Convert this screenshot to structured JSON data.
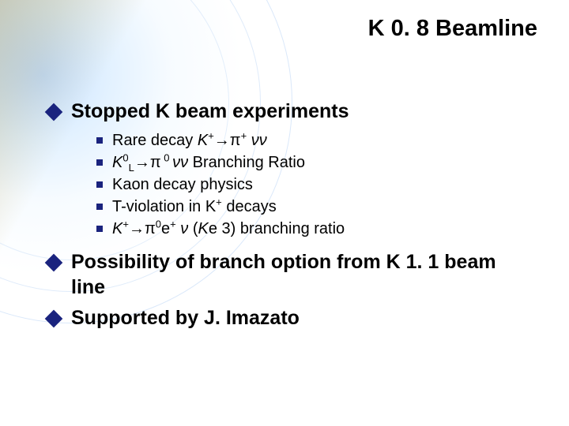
{
  "title": {
    "text": "K 0. 8 Beamline",
    "fontsize": 29,
    "color": "#000000",
    "weight": "bold"
  },
  "bullets_l1": [
    {
      "text": "Stopped K beam experiments",
      "fontsize": 25
    },
    {
      "text": " Possibility of branch option from K 1. 1 beam line",
      "fontsize": 25
    },
    {
      "text": "Supported by J. Imazato",
      "fontsize": 25
    }
  ],
  "bullets_l2": [
    {
      "prefix": "Rare decay ",
      "formula_html": "<span class='italic'>K</span><sup>+</sup>→π<sup>+</sup> <span class='italic'>νν</span>",
      "suffix": "",
      "fontsize": 20
    },
    {
      "prefix": "",
      "formula_html": "<span class='italic'>K</span><sup>0</sup><sub>L</sub>→π<sup> 0 </sup><span class='italic'>νν</span>",
      "suffix": " Branching Ratio",
      "fontsize": 20
    },
    {
      "prefix": "Kaon decay physics",
      "formula_html": "",
      "suffix": "",
      "fontsize": 20
    },
    {
      "prefix": "T-violation in K",
      "formula_html": "<sup>+</sup>",
      "suffix": " decays",
      "fontsize": 20
    },
    {
      "prefix": "",
      "formula_html": "<span class='italic'>K</span><sup>+</sup>→π<sup>0</sup>e<sup>+</sup> <span class='italic'>ν</span> (<span class='italic'>K</span>e 3)",
      "suffix": "   branching ratio",
      "fontsize": 20
    }
  ],
  "colors": {
    "bullet_marker": "#1a237e",
    "text": "#000000"
  }
}
